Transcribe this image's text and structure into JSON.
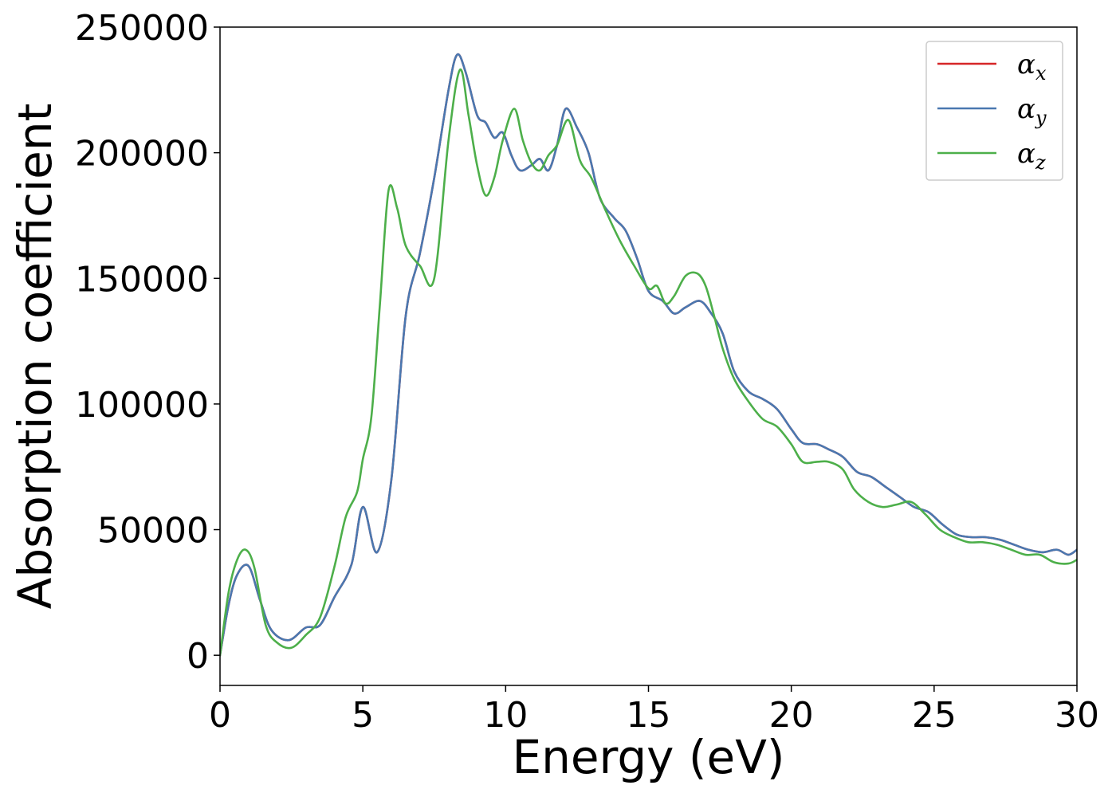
{
  "chart_data": {
    "type": "line",
    "title": "",
    "xlabel": "Energy (eV)",
    "ylabel": "Absorption coefficient",
    "xlim": [
      0,
      30
    ],
    "ylim": [
      -12000,
      250000
    ],
    "xticks": [
      0,
      5,
      10,
      15,
      20,
      25,
      30
    ],
    "yticks": [
      0,
      50000,
      100000,
      150000,
      200000,
      250000
    ],
    "xtick_labels": [
      "0",
      "5",
      "10",
      "15",
      "20",
      "25",
      "30"
    ],
    "ytick_labels": [
      "0",
      "50000",
      "100000",
      "150000",
      "200000",
      "250000"
    ],
    "grid": false,
    "legend_position": "top-right",
    "series": [
      {
        "name": "α_x",
        "legend_base": "α",
        "legend_sub": "x",
        "color": "#d62728",
        "x": [
          0,
          0.3,
          0.6,
          1.0,
          1.4,
          1.8,
          2.4,
          3.0,
          3.5,
          4.0,
          4.6,
          5.0,
          5.5,
          6.0,
          6.5,
          7.0,
          7.5,
          8.0,
          8.3,
          8.6,
          9.0,
          9.3,
          9.6,
          9.9,
          10.2,
          10.5,
          10.9,
          11.2,
          11.5,
          11.8,
          12.1,
          12.5,
          12.9,
          13.3,
          13.8,
          14.2,
          14.6,
          15.0,
          15.5,
          15.9,
          16.3,
          16.8,
          17.2,
          17.6,
          18.0,
          18.5,
          19.0,
          19.5,
          20.0,
          20.4,
          20.9,
          21.3,
          21.8,
          22.3,
          22.8,
          23.3,
          23.8,
          24.3,
          24.8,
          25.3,
          25.8,
          26.3,
          26.8,
          27.3,
          27.8,
          28.3,
          28.8,
          29.3,
          29.7,
          30.0
        ],
        "y": [
          0,
          20000,
          32000,
          35500,
          22000,
          10000,
          6000,
          11000,
          12000,
          23000,
          36000,
          59000,
          41000,
          70000,
          135000,
          160000,
          190000,
          225000,
          239000,
          232000,
          215000,
          212000,
          206000,
          208000,
          199000,
          193000,
          195000,
          197500,
          193000,
          203000,
          217500,
          210000,
          200000,
          182000,
          174000,
          169000,
          158000,
          145000,
          141000,
          136000,
          138500,
          141000,
          136000,
          128000,
          113000,
          105000,
          102000,
          98000,
          90000,
          84500,
          84000,
          82000,
          79000,
          73000,
          71000,
          67000,
          63000,
          59000,
          57000,
          52000,
          48000,
          47000,
          47000,
          46000,
          44000,
          42000,
          41000,
          42000,
          40000,
          42000
        ]
      },
      {
        "name": "α_y",
        "legend_base": "α",
        "legend_sub": "y",
        "color": "#4a78b0",
        "x": [
          0,
          0.3,
          0.6,
          1.0,
          1.4,
          1.8,
          2.4,
          3.0,
          3.5,
          4.0,
          4.6,
          5.0,
          5.5,
          6.0,
          6.5,
          7.0,
          7.5,
          8.0,
          8.3,
          8.6,
          9.0,
          9.3,
          9.6,
          9.9,
          10.2,
          10.5,
          10.9,
          11.2,
          11.5,
          11.8,
          12.1,
          12.5,
          12.9,
          13.3,
          13.8,
          14.2,
          14.6,
          15.0,
          15.5,
          15.9,
          16.3,
          16.8,
          17.2,
          17.6,
          18.0,
          18.5,
          19.0,
          19.5,
          20.0,
          20.4,
          20.9,
          21.3,
          21.8,
          22.3,
          22.8,
          23.3,
          23.8,
          24.3,
          24.8,
          25.3,
          25.8,
          26.3,
          26.8,
          27.3,
          27.8,
          28.3,
          28.8,
          29.3,
          29.7,
          30.0
        ],
        "y": [
          0,
          20000,
          32000,
          35500,
          22000,
          10000,
          6000,
          11000,
          12000,
          23000,
          36000,
          59000,
          41000,
          70000,
          135000,
          160000,
          190000,
          225000,
          239000,
          232000,
          215000,
          212000,
          206000,
          208000,
          199000,
          193000,
          195000,
          197500,
          193000,
          203000,
          217500,
          210000,
          200000,
          182000,
          174000,
          169000,
          158000,
          145000,
          141000,
          136000,
          138500,
          141000,
          136000,
          128000,
          113000,
          105000,
          102000,
          98000,
          90000,
          84500,
          84000,
          82000,
          79000,
          73000,
          71000,
          67000,
          63000,
          59000,
          57000,
          52000,
          48000,
          47000,
          47000,
          46000,
          44000,
          42000,
          41000,
          42000,
          40000,
          42000
        ]
      },
      {
        "name": "α_z",
        "legend_base": "α",
        "legend_sub": "z",
        "color": "#4daf4a",
        "x": [
          0,
          0.3,
          0.6,
          0.9,
          1.2,
          1.6,
          2.0,
          2.5,
          3.0,
          3.5,
          4.0,
          4.4,
          4.8,
          5.0,
          5.3,
          5.6,
          5.9,
          6.2,
          6.5,
          7.0,
          7.5,
          8.0,
          8.4,
          8.7,
          9.0,
          9.3,
          9.6,
          9.9,
          10.3,
          10.6,
          10.9,
          11.2,
          11.5,
          11.8,
          12.2,
          12.6,
          13.0,
          13.5,
          14.0,
          14.5,
          15.0,
          15.3,
          15.6,
          15.9,
          16.3,
          16.7,
          17.0,
          17.3,
          17.6,
          18.0,
          18.5,
          19.0,
          19.5,
          20.0,
          20.4,
          20.9,
          21.3,
          21.8,
          22.2,
          22.7,
          23.2,
          23.7,
          24.2,
          24.7,
          25.2,
          25.7,
          26.2,
          26.7,
          27.2,
          27.7,
          28.2,
          28.7,
          29.2,
          29.7,
          30.0
        ],
        "y": [
          0,
          25000,
          38000,
          42000,
          35000,
          12000,
          5000,
          3000,
          8000,
          15000,
          35000,
          55000,
          65000,
          78000,
          95000,
          140000,
          185000,
          178000,
          163000,
          155000,
          150000,
          205000,
          233000,
          215000,
          195000,
          183000,
          190000,
          205000,
          217500,
          205000,
          196000,
          193000,
          199000,
          203000,
          213000,
          197000,
          190000,
          177000,
          165000,
          155000,
          146000,
          147000,
          140000,
          143000,
          151000,
          152000,
          147000,
          135000,
          122000,
          110000,
          101000,
          94000,
          91000,
          84000,
          77000,
          77000,
          77000,
          74000,
          66000,
          61000,
          59000,
          60000,
          61000,
          56000,
          50000,
          47000,
          45000,
          45000,
          44000,
          42000,
          40000,
          40000,
          37000,
          36500,
          38000
        ]
      }
    ]
  }
}
